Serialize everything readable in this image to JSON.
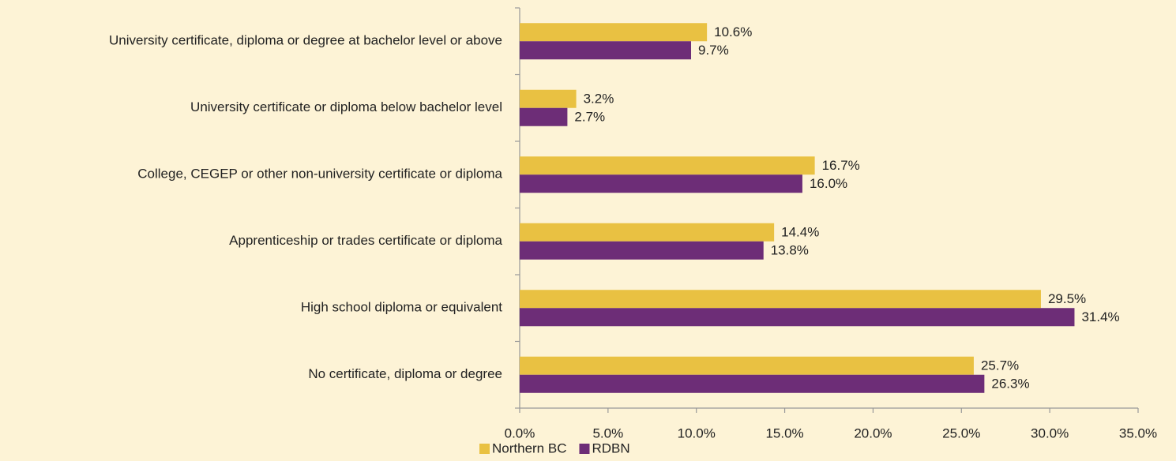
{
  "chart_data": {
    "type": "bar",
    "orientation": "horizontal",
    "categories": [
      "University certificate, diploma or degree at bachelor level or above",
      "University certificate or diploma below bachelor level",
      "College, CEGEP or other non-university certificate or diploma",
      "Apprenticeship or trades certificate or diploma",
      "High school diploma or equivalent",
      "No certificate, diploma or degree"
    ],
    "series": [
      {
        "name": "Northern BC",
        "color": "#e9c142",
        "values": [
          10.6,
          3.2,
          16.7,
          14.4,
          29.5,
          25.7
        ],
        "value_labels": [
          "10.6%",
          "3.2%",
          "16.7%",
          "14.4%",
          "29.5%",
          "25.7%"
        ]
      },
      {
        "name": "RDBN",
        "color": "#6d2d77",
        "values": [
          9.7,
          2.7,
          16.0,
          13.8,
          31.4,
          26.3
        ],
        "value_labels": [
          "9.7%",
          "2.7%",
          "16.0%",
          "13.8%",
          "31.4%",
          "26.3%"
        ]
      }
    ],
    "xlim": [
      0,
      35
    ],
    "xticks": [
      {
        "value": 0,
        "label": "0.0%"
      },
      {
        "value": 5,
        "label": "5.0%"
      },
      {
        "value": 10,
        "label": "10.0%"
      },
      {
        "value": 15,
        "label": "15.0%"
      },
      {
        "value": 20,
        "label": "20.0%"
      },
      {
        "value": 25,
        "label": "25.0%"
      },
      {
        "value": 30,
        "label": "30.0%"
      },
      {
        "value": 35,
        "label": "35.0%"
      }
    ],
    "grid": false,
    "legend": "bottom"
  }
}
